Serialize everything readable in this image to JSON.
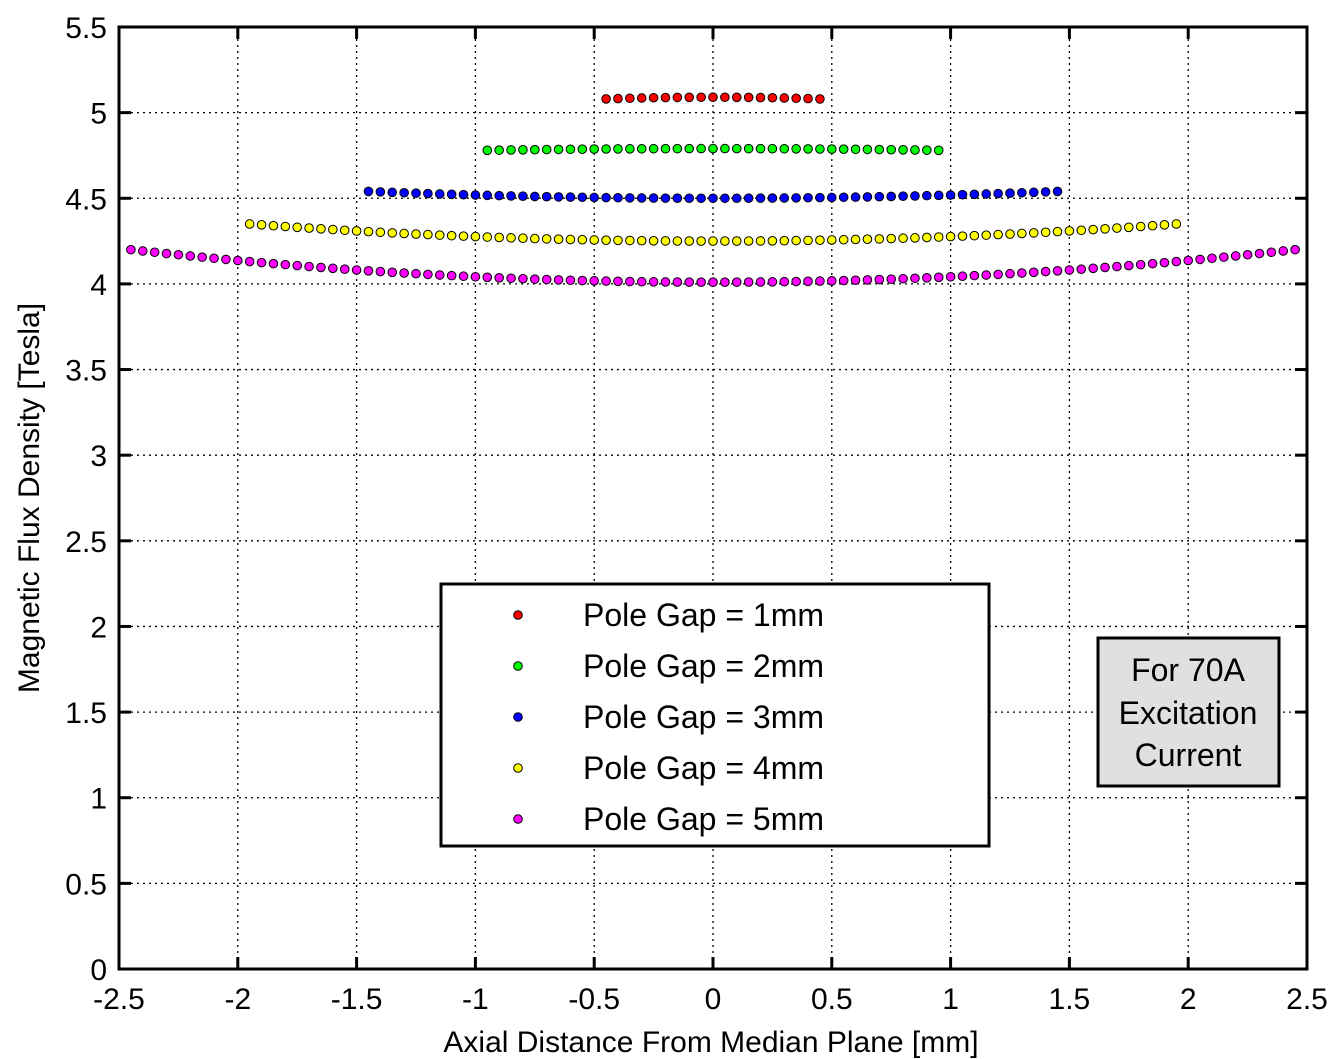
{
  "chart_data": {
    "type": "scatter",
    "title": "",
    "xlabel": "Axial Distance From Median Plane [mm]",
    "ylabel": "Magnetic Flux Density [Tesla]",
    "xlim": [
      -2.5,
      2.5
    ],
    "ylim": [
      0,
      5.5
    ],
    "x_ticks": [
      -2.5,
      -2,
      -1.5,
      -1,
      -0.5,
      0,
      0.5,
      1,
      1.5,
      2,
      2.5
    ],
    "x_tick_labels": [
      "-2.5",
      "-2",
      "-1.5",
      "-1",
      "-0.5",
      "0",
      "0.5",
      "1",
      "1.5",
      "2",
      "2.5"
    ],
    "y_ticks": [
      0,
      0.5,
      1,
      1.5,
      2,
      2.5,
      3,
      3.5,
      4,
      4.5,
      5,
      5.5
    ],
    "y_tick_labels": [
      "0",
      "0.5",
      "1",
      "1.5",
      "2",
      "2.5",
      "3",
      "3.5",
      "4",
      "4.5",
      "5",
      "5.5"
    ],
    "grid": true,
    "legend_position": "center-bottom",
    "series": [
      {
        "name": "Pole Gap = 1mm",
        "color": "#ff0000",
        "x_start": -0.45,
        "x_end": 0.45,
        "n_points": 19,
        "center_value": 5.09,
        "edge_value": 5.08
      },
      {
        "name": "Pole Gap = 2mm",
        "color": "#00ff00",
        "x_start": -0.95,
        "x_end": 0.95,
        "n_points": 39,
        "center_value": 4.79,
        "edge_value": 4.78
      },
      {
        "name": "Pole Gap = 3mm",
        "color": "#0000ff",
        "x_start": -1.45,
        "x_end": 1.45,
        "n_points": 59,
        "center_value": 4.5,
        "edge_value": 4.54
      },
      {
        "name": "Pole Gap = 4mm",
        "color": "#ffff00",
        "x_start": -1.95,
        "x_end": 1.95,
        "n_points": 79,
        "center_value": 4.25,
        "edge_value": 4.35
      },
      {
        "name": "Pole Gap = 5mm",
        "color": "#ff00ff",
        "x_start": -2.45,
        "x_end": 2.45,
        "n_points": 99,
        "center_value": 4.01,
        "edge_value": 4.2
      }
    ],
    "annotation": {
      "lines": [
        "For 70A",
        "Excitation",
        "Current"
      ],
      "background": "#e0e0e0"
    }
  }
}
